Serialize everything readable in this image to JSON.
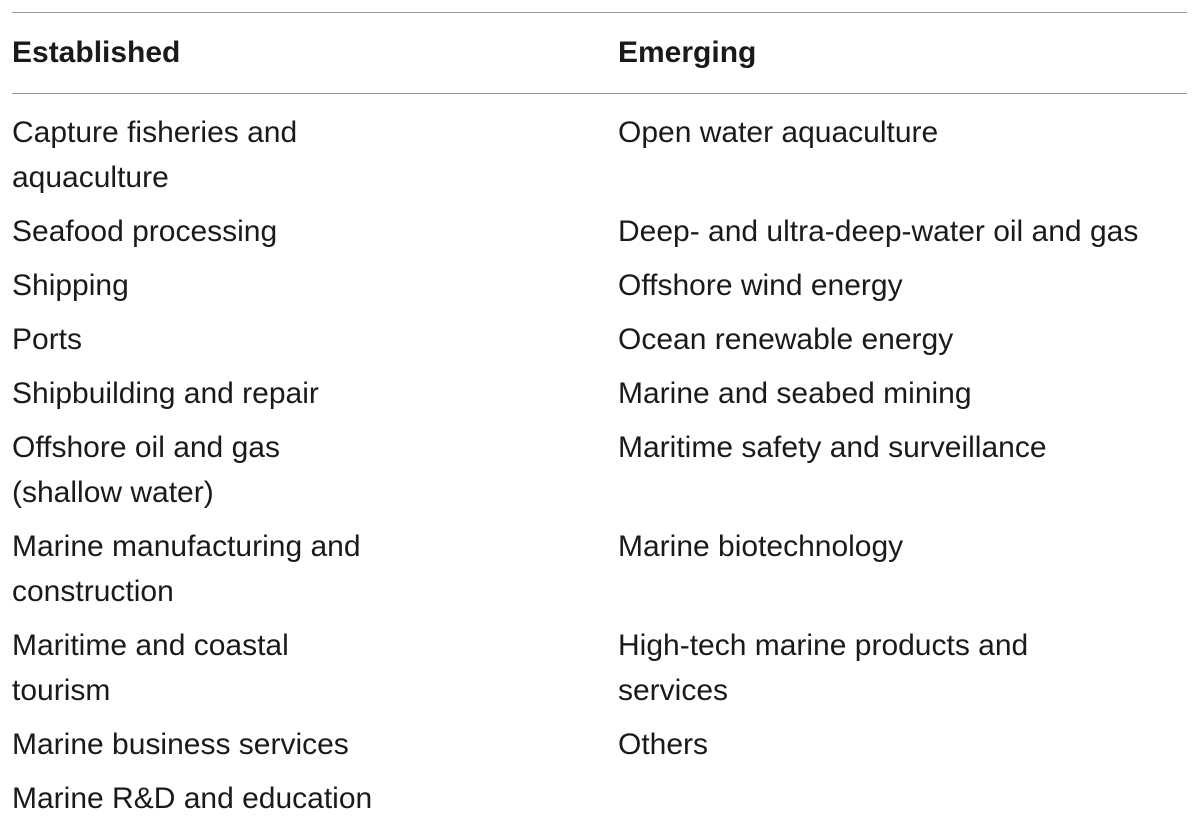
{
  "table": {
    "headers": [
      "Established",
      "Emerging"
    ],
    "rows": [
      [
        [
          "Capture fisheries and",
          "aquaculture"
        ],
        [
          "Open water aquaculture"
        ]
      ],
      [
        [
          "Seafood processing"
        ],
        [
          "Deep- and ultra-deep-water oil and gas"
        ]
      ],
      [
        [
          "Shipping"
        ],
        [
          "Offshore wind energy"
        ]
      ],
      [
        [
          "Ports"
        ],
        [
          "Ocean renewable energy"
        ]
      ],
      [
        [
          "Shipbuilding and repair"
        ],
        [
          "Marine and seabed mining"
        ]
      ],
      [
        [
          "Offshore oil and gas",
          "(shallow water)"
        ],
        [
          "Maritime safety and surveillance"
        ]
      ],
      [
        [
          "Marine manufacturing and",
          "construction"
        ],
        [
          "Marine biotechnology"
        ]
      ],
      [
        [
          "Maritime and coastal",
          "tourism"
        ],
        [
          "High-tech marine products and",
          "services"
        ]
      ],
      [
        [
          "Marine business services"
        ],
        [
          "Others"
        ]
      ],
      [
        [
          "Marine R&D and education"
        ],
        []
      ]
    ]
  }
}
